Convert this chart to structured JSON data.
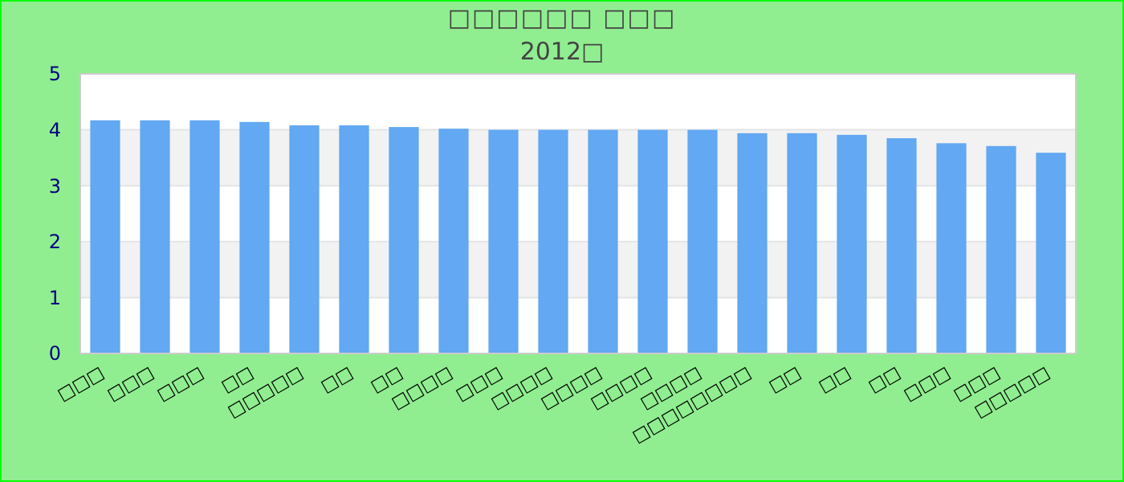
{
  "chart_data": {
    "type": "bar",
    "title": "□□□□□□ □□□",
    "subtitle": "2012□",
    "categories": [
      "□□□",
      "□□□",
      "□□□",
      "□□",
      "□□□□□",
      "□□",
      "□□",
      "□□□□",
      "□□□",
      "□□□□",
      "□□□□",
      "□□□□",
      "□□□□",
      "□□□□□□□□",
      "□□",
      "□□",
      "□□",
      "□□□",
      "□□□",
      "□□□□□"
    ],
    "values": [
      4.17,
      4.17,
      4.17,
      4.14,
      4.08,
      4.08,
      4.05,
      4.02,
      4.0,
      4.0,
      4.0,
      4.0,
      4.0,
      3.94,
      3.94,
      3.91,
      3.85,
      3.76,
      3.71,
      3.59
    ],
    "color": "#62a8f2",
    "ylim": [
      0,
      5
    ],
    "yticks": [
      0,
      1,
      2,
      3,
      4,
      5
    ],
    "grid": "y"
  }
}
